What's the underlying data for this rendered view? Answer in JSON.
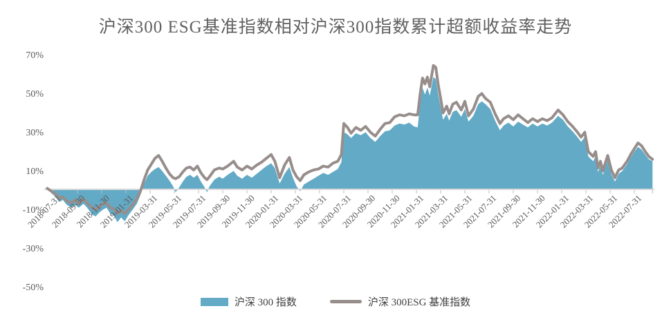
{
  "chart_data": {
    "type": "area",
    "title": "沪深300 ESG基准指数相对沪深300指数累计超额收益率走势",
    "unit": "%",
    "grid": false,
    "legend_position": "bottom",
    "y_ticks": [
      70,
      50,
      30,
      10,
      -10,
      -30,
      -50
    ],
    "y_range": [
      -50,
      70
    ],
    "x_tick_labels": [
      "2018-07-31",
      "2018-09-30",
      "2018-11-30",
      "2019-01-31",
      "2019-03-31",
      "2019-05-31",
      "2019-07-31",
      "2019-09-30",
      "2019-11-30",
      "2020-01-31",
      "2020-03-31",
      "2020-05-31",
      "2020-07-31",
      "2020-09-30",
      "2020-11-30",
      "2021-01-31",
      "2021-03-31",
      "2021-05-31",
      "2021-07-31",
      "2021-09-30",
      "2021-11-30",
      "2022-01-31",
      "2022-03-31",
      "2022-05-31",
      "2022-07-31"
    ],
    "x_tick_months": [
      0,
      2,
      4,
      6,
      8,
      10,
      12,
      14,
      16,
      18,
      20,
      22,
      24,
      26,
      28,
      30,
      32,
      34,
      36,
      38,
      40,
      42,
      44,
      46,
      48
    ],
    "series": [
      {
        "name": "沪深 300 指数",
        "type": "area",
        "color": "#63aac6"
      },
      {
        "name": "沪深 300ESG 基准指数",
        "type": "line",
        "color": "#978e8c",
        "stroke_width": 4
      }
    ],
    "points_note": "triplets [months_since_2018-07-31, csi300_pct, esg_pct]",
    "points": [
      [
        -0.5,
        0,
        0.5
      ],
      [
        0.2,
        -4,
        -2.5
      ],
      [
        0.5,
        -6.5,
        -4.5
      ],
      [
        0.8,
        -5.5,
        -4
      ],
      [
        1.1,
        -8,
        -6
      ],
      [
        1.5,
        -9.5,
        -7
      ],
      [
        1.8,
        -8,
        -5.5
      ],
      [
        2.1,
        -9.5,
        -7.5
      ],
      [
        2.5,
        -7.5,
        -5
      ],
      [
        2.8,
        -9.5,
        -7
      ],
      [
        3.2,
        -13,
        -9.5
      ],
      [
        3.5,
        -14,
        -10.5
      ],
      [
        3.8,
        -12,
        -9
      ],
      [
        4.1,
        -10.5,
        -7.5
      ],
      [
        4.4,
        -9.5,
        -7
      ],
      [
        4.7,
        -12.5,
        -9.5
      ],
      [
        5.0,
        -13.5,
        -10
      ],
      [
        5.3,
        -17,
        -12.5
      ],
      [
        5.6,
        -14.5,
        -11
      ],
      [
        5.9,
        -16.5,
        -12.5
      ],
      [
        6.2,
        -13.5,
        -10.5
      ],
      [
        6.5,
        -11,
        -8.5
      ],
      [
        6.9,
        -7.5,
        -5
      ],
      [
        7.2,
        -3,
        -1
      ],
      [
        7.5,
        3,
        5
      ],
      [
        7.8,
        7,
        10
      ],
      [
        8.1,
        9,
        13
      ],
      [
        8.4,
        10.5,
        16
      ],
      [
        8.7,
        11.5,
        17.5
      ],
      [
        9.0,
        9.5,
        14.5
      ],
      [
        9.3,
        7,
        11
      ],
      [
        9.6,
        4.5,
        8
      ],
      [
        9.9,
        1.5,
        6
      ],
      [
        10.1,
        -1.5,
        5.5
      ],
      [
        10.4,
        1,
        6.5
      ],
      [
        10.7,
        4,
        9
      ],
      [
        11.0,
        6.5,
        11
      ],
      [
        11.3,
        7.5,
        11.5
      ],
      [
        11.6,
        6,
        10
      ],
      [
        11.9,
        7.5,
        12
      ],
      [
        12.2,
        4,
        8.5
      ],
      [
        12.5,
        1,
        6
      ],
      [
        12.7,
        -1.5,
        5
      ],
      [
        12.9,
        1.5,
        6.5
      ],
      [
        13.3,
        5,
        10
      ],
      [
        13.7,
        6.5,
        11
      ],
      [
        14.0,
        5.5,
        10.5
      ],
      [
        14.4,
        7.5,
        12
      ],
      [
        14.9,
        9.5,
        14.5
      ],
      [
        15.2,
        7,
        11.5
      ],
      [
        15.6,
        5.5,
        10
      ],
      [
        16.0,
        7.5,
        12
      ],
      [
        16.4,
        6,
        10.5
      ],
      [
        16.8,
        8,
        12.5
      ],
      [
        17.2,
        10,
        14
      ],
      [
        17.6,
        12,
        16
      ],
      [
        18.0,
        13.5,
        18
      ],
      [
        18.3,
        11,
        14.5
      ],
      [
        18.7,
        3,
        6
      ],
      [
        19.1,
        8,
        12.5
      ],
      [
        19.5,
        11.5,
        16.5
      ],
      [
        19.8,
        6,
        10
      ],
      [
        20.1,
        1.5,
        6.5
      ],
      [
        20.4,
        -1,
        4.5
      ],
      [
        20.7,
        2.5,
        7.5
      ],
      [
        21.1,
        4,
        9
      ],
      [
        21.5,
        5.5,
        10
      ],
      [
        21.9,
        7,
        10.5
      ],
      [
        22.3,
        8.5,
        12
      ],
      [
        22.7,
        7.5,
        11.5
      ],
      [
        23.1,
        9,
        13.5
      ],
      [
        23.5,
        10.5,
        14.5
      ],
      [
        23.8,
        14,
        18
      ],
      [
        24.0,
        29.5,
        34
      ],
      [
        24.3,
        28.5,
        32
      ],
      [
        24.6,
        26.5,
        29
      ],
      [
        25.0,
        29,
        32
      ],
      [
        25.4,
        28,
        30.5
      ],
      [
        25.8,
        29.5,
        32.5
      ],
      [
        26.2,
        26.5,
        29.5
      ],
      [
        26.6,
        24.5,
        27.5
      ],
      [
        27.0,
        27.5,
        31
      ],
      [
        27.4,
        30,
        34
      ],
      [
        27.8,
        30.5,
        34.5
      ],
      [
        28.2,
        33,
        37.5
      ],
      [
        28.6,
        34,
        38.5
      ],
      [
        29.0,
        33.5,
        38
      ],
      [
        29.4,
        34.5,
        39
      ],
      [
        29.8,
        32.5,
        38.5
      ],
      [
        30.1,
        32,
        38.5
      ],
      [
        30.3,
        44,
        49
      ],
      [
        30.5,
        52.5,
        57.5
      ],
      [
        30.7,
        49,
        54.5
      ],
      [
        30.9,
        52.5,
        58
      ],
      [
        31.1,
        48.5,
        53
      ],
      [
        31.4,
        58,
        64
      ],
      [
        31.6,
        57,
        63
      ],
      [
        31.8,
        49,
        54
      ],
      [
        32.0,
        42.5,
        47
      ],
      [
        32.2,
        36,
        39.5
      ],
      [
        32.5,
        39,
        43
      ],
      [
        32.7,
        35.5,
        39
      ],
      [
        33.0,
        40,
        44
      ],
      [
        33.3,
        41,
        45
      ],
      [
        33.7,
        37.5,
        41
      ],
      [
        34.0,
        41.5,
        45.5
      ],
      [
        34.3,
        35,
        38
      ],
      [
        34.7,
        38,
        41.5
      ],
      [
        35.1,
        44,
        48
      ],
      [
        35.4,
        45.5,
        49.5
      ],
      [
        35.7,
        44,
        47
      ],
      [
        36.1,
        41.5,
        45
      ],
      [
        36.5,
        35.5,
        39
      ],
      [
        36.9,
        30.5,
        34
      ],
      [
        37.2,
        33,
        36.5
      ],
      [
        37.6,
        34.5,
        38
      ],
      [
        38.0,
        32.5,
        36
      ],
      [
        38.4,
        35,
        38.5
      ],
      [
        38.8,
        33.5,
        36.5
      ],
      [
        39.2,
        32,
        34.5
      ],
      [
        39.6,
        34,
        36.5
      ],
      [
        40.0,
        32.5,
        35
      ],
      [
        40.4,
        34,
        36.5
      ],
      [
        40.8,
        33,
        35.5
      ],
      [
        41.2,
        34.5,
        37
      ],
      [
        41.7,
        38,
        41
      ],
      [
        42.1,
        36,
        38.5
      ],
      [
        42.5,
        32.5,
        35
      ],
      [
        42.9,
        30,
        32.5
      ],
      [
        43.3,
        27,
        29.5
      ],
      [
        43.6,
        24.5,
        27
      ],
      [
        43.9,
        27,
        29.5
      ],
      [
        44.2,
        17,
        19.5
      ],
      [
        44.6,
        14.5,
        17
      ],
      [
        44.8,
        17,
        19.5
      ],
      [
        45.0,
        9,
        11
      ],
      [
        45.2,
        12,
        14.5
      ],
      [
        45.4,
        7.5,
        9.5
      ],
      [
        45.8,
        15,
        17.5
      ],
      [
        46.1,
        8,
        10
      ],
      [
        46.4,
        4,
        6
      ],
      [
        46.7,
        8,
        10
      ],
      [
        47.0,
        9.5,
        11
      ],
      [
        47.4,
        13,
        14.5
      ],
      [
        47.7,
        16.5,
        18
      ],
      [
        48.0,
        19.5,
        21
      ],
      [
        48.3,
        22,
        24
      ],
      [
        48.6,
        20.5,
        22.5
      ],
      [
        48.9,
        18,
        19.5
      ],
      [
        49.2,
        15.5,
        17
      ],
      [
        49.5,
        14.5,
        15.5
      ]
    ]
  },
  "colors": {
    "axis_line": "#d9d9d9",
    "tick_mark": "#bfbfbf",
    "title_text": "#606060",
    "axis_text": "#595959",
    "legend_text": "#3f3f3f"
  }
}
